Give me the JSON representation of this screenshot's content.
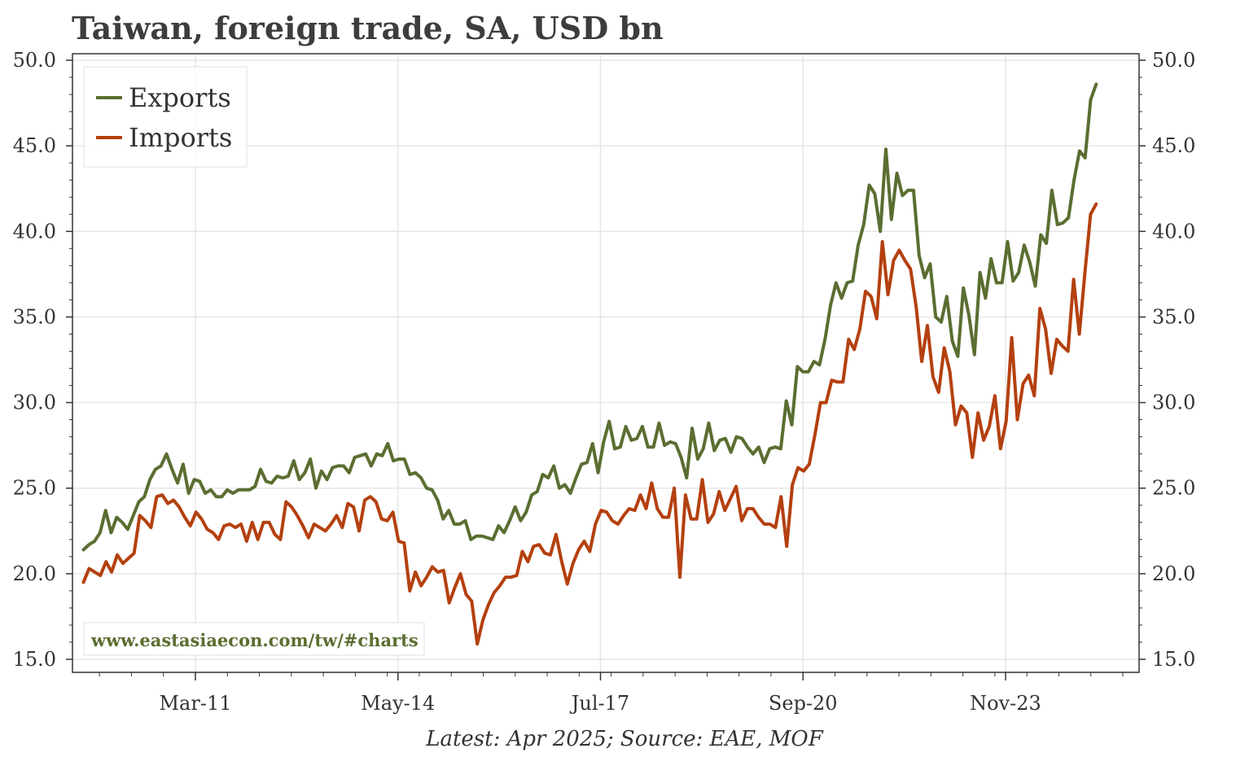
{
  "chart_data": {
    "type": "line",
    "title": "Taiwan, foreign trade, SA, USD bn",
    "xlabel": "",
    "ylabel": "",
    "x_start": "2009-06",
    "x_end": "2025-04",
    "x_ticks": [
      "Mar-11",
      "May-14",
      "Jul-17",
      "Sep-20",
      "Nov-23"
    ],
    "y_ticks": [
      "15.0",
      "20.0",
      "25.0",
      "30.0",
      "35.0",
      "40.0",
      "45.0",
      "50.0"
    ],
    "ylim": [
      15,
      50
    ],
    "grid": true,
    "legend_position": "top-left",
    "series": [
      {
        "name": "Exports",
        "color": "#5a6e31",
        "values": [
          21.4,
          21.7,
          21.9,
          22.4,
          23.7,
          22.4,
          23.3,
          23.0,
          22.6,
          23.4,
          24.2,
          24.5,
          25.5,
          26.1,
          26.3,
          27.0,
          26.1,
          25.3,
          26.4,
          24.7,
          25.5,
          25.4,
          24.7,
          24.9,
          24.5,
          24.5,
          24.9,
          24.7,
          24.9,
          24.9,
          24.9,
          25.1,
          26.1,
          25.4,
          25.3,
          25.7,
          25.6,
          25.7,
          26.6,
          25.5,
          25.9,
          26.7,
          25.0,
          26.0,
          25.5,
          26.2,
          26.3,
          26.3,
          25.9,
          26.8,
          26.9,
          27.0,
          26.3,
          27.0,
          26.9,
          27.6,
          26.6,
          26.7,
          26.7,
          25.8,
          25.9,
          25.6,
          25.0,
          24.9,
          24.3,
          23.2,
          23.7,
          22.9,
          22.9,
          23.1,
          22.0,
          22.2,
          22.2,
          22.1,
          22.0,
          22.8,
          22.4,
          23.1,
          23.9,
          23.1,
          23.6,
          24.6,
          24.8,
          25.8,
          25.6,
          26.3,
          25.0,
          25.2,
          24.7,
          25.6,
          26.4,
          26.5,
          27.6,
          25.9,
          27.7,
          28.9,
          27.3,
          27.4,
          28.6,
          27.8,
          27.9,
          28.6,
          27.4,
          27.4,
          28.8,
          27.5,
          27.7,
          27.6,
          26.8,
          25.6,
          28.5,
          26.7,
          27.3,
          28.8,
          27.2,
          27.8,
          27.9,
          27.1,
          28.0,
          27.9,
          27.4,
          27.0,
          27.4,
          26.5,
          27.3,
          27.4,
          27.3,
          30.1,
          28.7,
          32.1,
          31.8,
          31.8,
          32.4,
          32.2,
          33.7,
          35.7,
          37.0,
          36.1,
          37.0,
          37.1,
          39.2,
          40.4,
          42.7,
          42.2,
          40.0,
          44.8,
          40.7,
          43.4,
          42.1,
          42.4,
          42.4,
          38.6,
          37.3,
          38.1,
          35.0,
          34.7,
          36.2,
          33.6,
          32.7,
          36.7,
          35.1,
          32.8,
          37.6,
          36.1,
          38.4,
          37.0,
          37.0,
          39.4,
          37.1,
          37.6,
          39.2,
          38.2,
          36.8,
          39.8,
          39.3,
          42.4,
          40.4,
          40.5,
          40.8,
          43.0,
          44.7,
          44.3,
          47.7,
          48.6
        ]
      },
      {
        "name": "Imports",
        "color": "#b4400f",
        "values": [
          19.5,
          20.3,
          20.1,
          19.9,
          20.7,
          20.1,
          21.1,
          20.6,
          20.9,
          21.2,
          23.4,
          23.1,
          22.7,
          24.5,
          24.6,
          24.1,
          24.3,
          23.9,
          23.3,
          22.8,
          23.6,
          23.2,
          22.6,
          22.4,
          22.0,
          22.8,
          22.9,
          22.7,
          22.9,
          21.9,
          23.0,
          22.0,
          23.0,
          23.0,
          22.3,
          22.0,
          24.2,
          23.9,
          23.4,
          22.8,
          22.1,
          22.9,
          22.7,
          22.5,
          22.9,
          23.4,
          22.7,
          24.1,
          23.9,
          22.5,
          24.3,
          24.5,
          24.2,
          23.2,
          23.1,
          23.6,
          21.9,
          21.8,
          19.0,
          20.1,
          19.3,
          19.8,
          20.4,
          20.1,
          20.2,
          18.3,
          19.2,
          20.0,
          18.8,
          18.4,
          15.9,
          17.3,
          18.2,
          18.9,
          19.3,
          19.8,
          19.8,
          19.9,
          21.3,
          20.7,
          21.6,
          21.7,
          21.2,
          21.1,
          22.3,
          20.7,
          19.4,
          20.6,
          21.4,
          21.9,
          21.3,
          22.9,
          23.7,
          23.6,
          23.1,
          22.9,
          23.4,
          23.8,
          23.7,
          24.6,
          23.8,
          25.3,
          23.8,
          23.3,
          23.3,
          25.0,
          19.8,
          24.6,
          23.2,
          23.2,
          25.5,
          23.0,
          23.5,
          24.8,
          23.7,
          24.4,
          25.1,
          23.1,
          23.8,
          23.8,
          23.3,
          22.9,
          22.9,
          22.7,
          24.5,
          21.6,
          25.2,
          26.2,
          26.0,
          26.4,
          28.1,
          30.0,
          30.0,
          31.3,
          31.2,
          31.2,
          33.7,
          33.1,
          34.3,
          36.5,
          36.2,
          34.9,
          39.4,
          36.3,
          38.3,
          38.9,
          38.3,
          37.8,
          35.6,
          32.4,
          34.5,
          31.5,
          30.6,
          33.2,
          31.8,
          28.7,
          29.8,
          29.4,
          26.8,
          29.4,
          27.8,
          28.6,
          30.4,
          27.3,
          28.9,
          33.8,
          29.0,
          31.1,
          31.6,
          30.4,
          35.5,
          34.3,
          31.7,
          33.7,
          33.3,
          33.0,
          37.2,
          34.0,
          37.6,
          41.0,
          41.6
        ]
      }
    ]
  },
  "watermark": "www.eastasiaecon.com/tw/#charts",
  "footer_note": "Latest: Apr 2025; Source: EAE, MOF",
  "colors": {
    "exports": "#5a6e31",
    "imports": "#b4400f",
    "grid": "#e6e6e6",
    "axis": "#333333"
  }
}
